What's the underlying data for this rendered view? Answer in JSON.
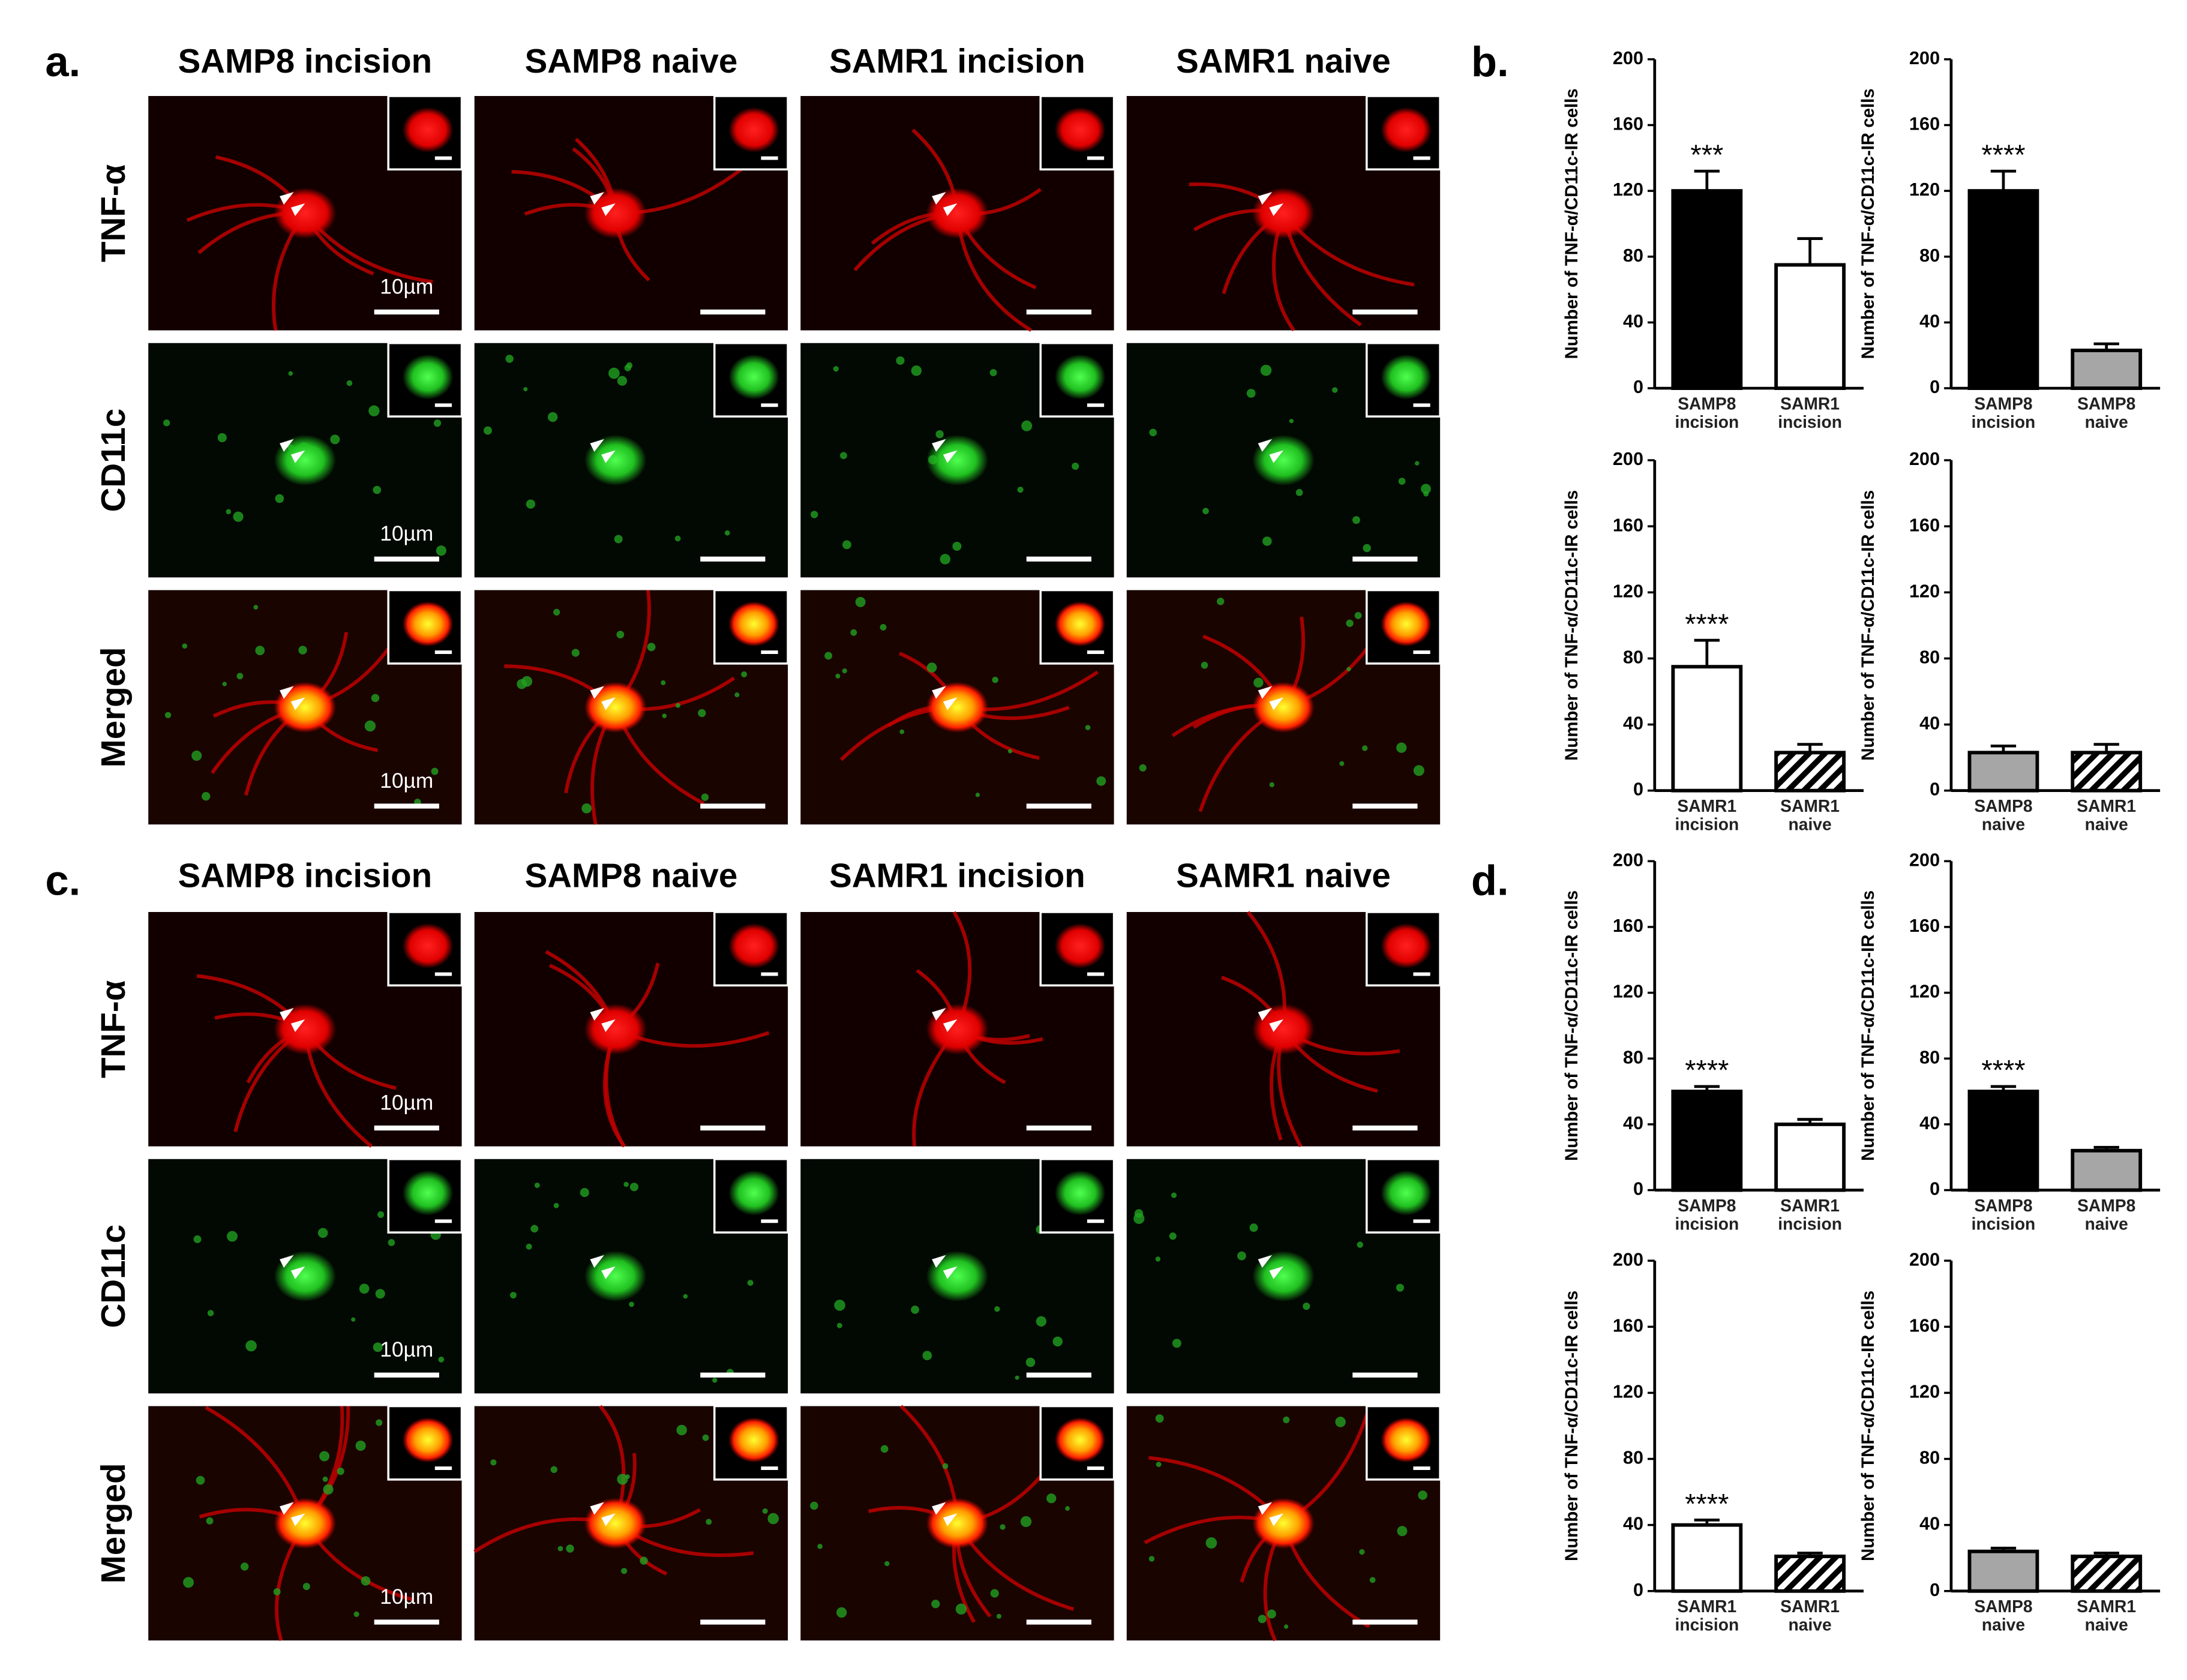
{
  "panels": {
    "a": {
      "label": "a.",
      "columns": [
        "SAMP8 incision",
        "SAMP8 naive",
        "SAMR1 incision",
        "SAMR1 naive"
      ],
      "rows": [
        "TNF-α",
        "CD11c",
        "Merged"
      ],
      "scale": "10µm"
    },
    "b": {
      "label": "b."
    },
    "c": {
      "label": "c.",
      "columns": [
        "SAMP8 incision",
        "SAMP8 naive",
        "SAMR1 incision",
        "SAMR1 naive"
      ],
      "rows": [
        "TNF-α",
        "CD11c",
        "Merged"
      ],
      "scale": "10µm"
    },
    "d": {
      "label": "d."
    }
  },
  "chart_data": [
    {
      "type": "bar",
      "y_label": "Number of TNF-α/CD11c-IR cells",
      "categories": [
        "SAMP8 incision",
        "SAMR1 incision"
      ],
      "values": [
        120,
        75
      ],
      "errors": [
        12,
        16
      ],
      "colors": [
        "#000000",
        "#ffffff"
      ],
      "annotation": "***",
      "ylim": [
        0,
        200
      ],
      "yticks": [
        0,
        40,
        80,
        120,
        160,
        200
      ]
    },
    {
      "type": "bar",
      "y_label": "Number of TNF-α/CD11c-IR cells",
      "categories": [
        "SAMP8 incision",
        "SAMP8 naive"
      ],
      "values": [
        120,
        23
      ],
      "errors": [
        12,
        4
      ],
      "colors": [
        "#000000",
        "#a6a6a6"
      ],
      "annotation": "****",
      "ylim": [
        0,
        200
      ],
      "yticks": [
        0,
        40,
        80,
        120,
        160,
        200
      ]
    },
    {
      "type": "bar",
      "y_label": "Number of TNF-α/CD11c-IR cells",
      "categories": [
        "SAMR1 incision",
        "SAMR1 naive"
      ],
      "values": [
        75,
        23
      ],
      "errors": [
        16,
        5
      ],
      "colors": [
        "#ffffff",
        "hatched"
      ],
      "annotation": "****",
      "ylim": [
        0,
        200
      ],
      "yticks": [
        0,
        40,
        80,
        120,
        160,
        200
      ]
    },
    {
      "type": "bar",
      "y_label": "Number of TNF-α/CD11c-IR cells",
      "categories": [
        "SAMP8 naive",
        "SAMR1 naive"
      ],
      "values": [
        23,
        23
      ],
      "errors": [
        4,
        5
      ],
      "colors": [
        "#a6a6a6",
        "hatched"
      ],
      "ylim": [
        0,
        200
      ],
      "yticks": [
        0,
        40,
        80,
        120,
        160,
        200
      ]
    },
    {
      "type": "bar",
      "y_label": "Number of TNF-α/CD11c-IR cells",
      "categories": [
        "SAMP8 incision",
        "SAMR1 incision"
      ],
      "values": [
        60,
        40
      ],
      "errors": [
        3,
        3
      ],
      "colors": [
        "#000000",
        "#ffffff"
      ],
      "annotation": "****",
      "ylim": [
        0,
        200
      ],
      "yticks": [
        0,
        40,
        80,
        120,
        160,
        200
      ]
    },
    {
      "type": "bar",
      "y_label": "Number of TNF-α/CD11c-IR cells",
      "categories": [
        "SAMP8 incision",
        "SAMP8 naive"
      ],
      "values": [
        60,
        24
      ],
      "errors": [
        3,
        2
      ],
      "colors": [
        "#000000",
        "#a6a6a6"
      ],
      "annotation": "****",
      "ylim": [
        0,
        200
      ],
      "yticks": [
        0,
        40,
        80,
        120,
        160,
        200
      ]
    },
    {
      "type": "bar",
      "y_label": "Number of TNF-α/CD11c-IR cells",
      "categories": [
        "SAMR1 incision",
        "SAMR1 naive"
      ],
      "values": [
        40,
        21
      ],
      "errors": [
        3,
        2
      ],
      "colors": [
        "#ffffff",
        "hatched"
      ],
      "annotation": "****",
      "ylim": [
        0,
        200
      ],
      "yticks": [
        0,
        40,
        80,
        120,
        160,
        200
      ]
    },
    {
      "type": "bar",
      "y_label": "Number of TNF-α/CD11c-IR cells",
      "categories": [
        "SAMP8 naive",
        "SAMR1 naive"
      ],
      "values": [
        24,
        21
      ],
      "errors": [
        2,
        2
      ],
      "colors": [
        "#a6a6a6",
        "hatched"
      ],
      "ylim": [
        0,
        200
      ],
      "yticks": [
        0,
        40,
        80,
        120,
        160,
        200
      ]
    }
  ]
}
